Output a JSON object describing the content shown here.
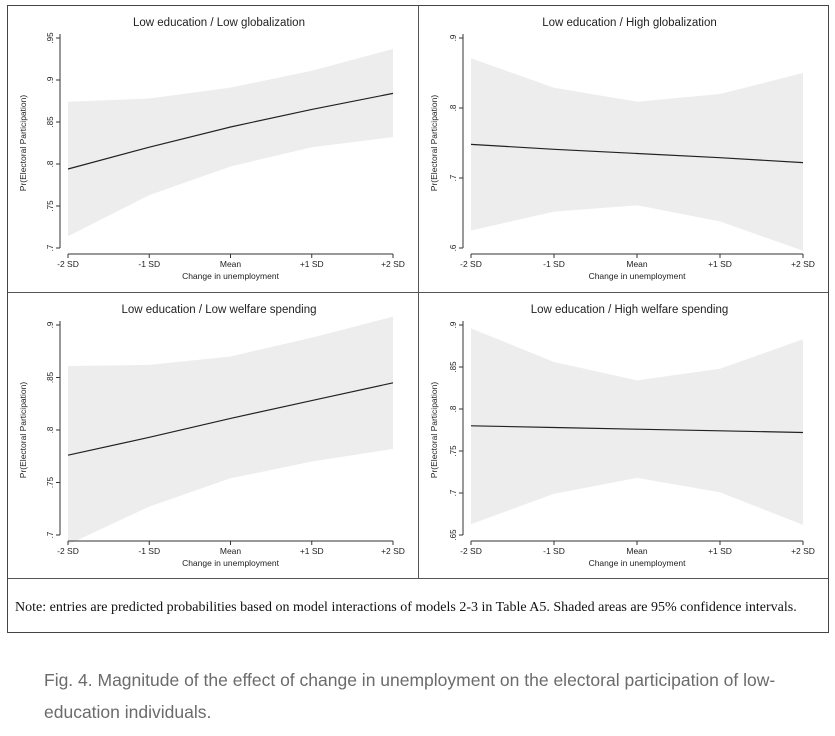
{
  "figure": {
    "note": "Note: entries are predicted probabilities based on model interactions of models 2-3 in Table A5. Shaded areas are 95% confidence intervals.",
    "caption": "Fig. 4. Magnitude of the effect of change in unemployment on the electoral participation of low-education individuals."
  },
  "chart_data": [
    {
      "type": "line",
      "title": "Low education / Low globalization",
      "xlabel": "Change in unemployment",
      "ylabel": "Pr(Electoral Participation)",
      "categories": [
        "-2 SD",
        "-1 SD",
        "Mean",
        "+1 SD",
        "+2 SD"
      ],
      "yticks": [
        ".7",
        ".75",
        ".8",
        ".85",
        ".9",
        ".95"
      ],
      "ylim": [
        0.7,
        0.95
      ],
      "series": [
        {
          "values": [
            0.794,
            0.82,
            0.844,
            0.865,
            0.884
          ],
          "ci_lower": [
            0.714,
            0.763,
            0.797,
            0.82,
            0.832
          ],
          "ci_upper": [
            0.874,
            0.878,
            0.891,
            0.911,
            0.937
          ]
        }
      ]
    },
    {
      "type": "line",
      "title": "Low education / High globalization",
      "xlabel": "Change in unemployment",
      "ylabel": "Pr(Electoral Participation)",
      "categories": [
        "-2 SD",
        "-1 SD",
        "Mean",
        "+1 SD",
        "+2 SD"
      ],
      "yticks": [
        ".6",
        ".7",
        ".8",
        ".9"
      ],
      "ylim": [
        0.6,
        0.9
      ],
      "series": [
        {
          "values": [
            0.748,
            0.741,
            0.735,
            0.729,
            0.722
          ],
          "ci_lower": [
            0.625,
            0.652,
            0.661,
            0.638,
            0.596
          ],
          "ci_upper": [
            0.871,
            0.829,
            0.809,
            0.82,
            0.85
          ]
        }
      ]
    },
    {
      "type": "line",
      "title": "Low education / Low welfare spending",
      "xlabel": "Change in unemployment",
      "ylabel": "Pr(Electoral Participation)",
      "categories": [
        "-2 SD",
        "-1 SD",
        "Mean",
        "+1 SD",
        "+2 SD"
      ],
      "yticks": [
        ".7",
        ".75",
        ".8",
        ".85",
        ".9"
      ],
      "ylim": [
        0.7,
        0.9
      ],
      "series": [
        {
          "values": [
            0.776,
            0.793,
            0.811,
            0.828,
            0.845
          ],
          "ci_lower": [
            0.691,
            0.727,
            0.754,
            0.77,
            0.782
          ],
          "ci_upper": [
            0.861,
            0.862,
            0.87,
            0.888,
            0.908
          ]
        }
      ]
    },
    {
      "type": "line",
      "title": "Low education / High welfare spending",
      "xlabel": "Change in unemployment",
      "ylabel": "Pr(Electoral Participation)",
      "categories": [
        "-2 SD",
        "-1 SD",
        "Mean",
        "+1 SD",
        "+2 SD"
      ],
      "yticks": [
        ".65",
        ".7",
        ".75",
        ".8",
        ".85",
        ".9"
      ],
      "ylim": [
        0.65,
        0.9
      ],
      "series": [
        {
          "values": [
            0.78,
            0.778,
            0.776,
            0.774,
            0.772
          ],
          "ci_lower": [
            0.663,
            0.699,
            0.718,
            0.701,
            0.662
          ],
          "ci_upper": [
            0.896,
            0.856,
            0.834,
            0.848,
            0.883
          ]
        }
      ]
    }
  ]
}
